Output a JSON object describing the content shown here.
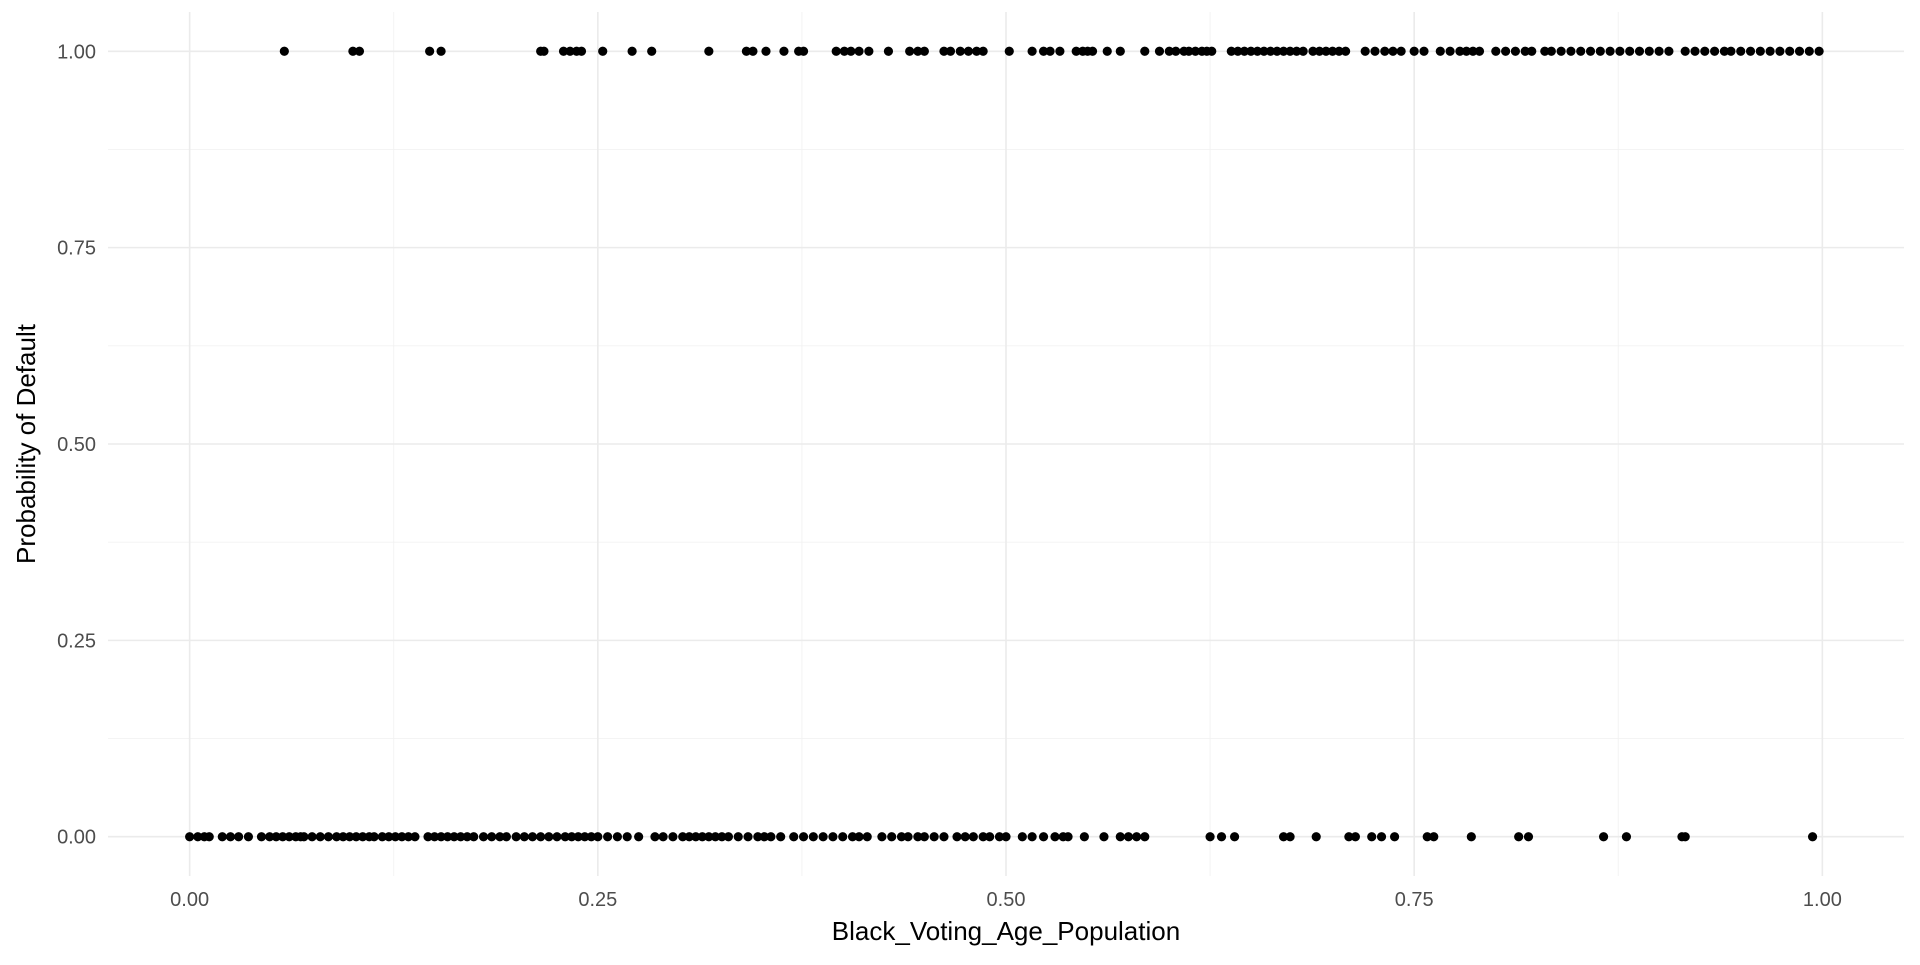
{
  "chart_data": {
    "type": "scatter",
    "title": "",
    "xlabel": "Black_Voting_Age_Population",
    "ylabel": "Probability of Default",
    "xlim": [
      -0.05,
      1.05
    ],
    "ylim": [
      -0.05,
      1.05
    ],
    "x_ticks": [
      0,
      0.25,
      0.5,
      0.75,
      1
    ],
    "x_tick_labels": [
      "0.00",
      "0.25",
      "0.50",
      "0.75",
      "1.00"
    ],
    "y_ticks": [
      0,
      0.25,
      0.5,
      0.75,
      1
    ],
    "y_tick_labels": [
      "0.00",
      "0.25",
      "0.50",
      "0.75",
      "1.00"
    ],
    "grid": true,
    "legend": "none",
    "point_color": "#000000",
    "series": [
      {
        "y": 1,
        "x": [
          0.058,
          0.1,
          0.104,
          0.147,
          0.154,
          0.215,
          0.217,
          0.229,
          0.233,
          0.237,
          0.24,
          0.253,
          0.271,
          0.283,
          0.318,
          0.341,
          0.345,
          0.353,
          0.364,
          0.373,
          0.376,
          0.396,
          0.401,
          0.405,
          0.41,
          0.416,
          0.428,
          0.441,
          0.446,
          0.45,
          0.462,
          0.466,
          0.472,
          0.477,
          0.482,
          0.486,
          0.502,
          0.516,
          0.523,
          0.527,
          0.533,
          0.543,
          0.547,
          0.55,
          0.553,
          0.562,
          0.57,
          0.585,
          0.594,
          0.6,
          0.604,
          0.609,
          0.612,
          0.616,
          0.62,
          0.623,
          0.626,
          0.638,
          0.642,
          0.646,
          0.65,
          0.654,
          0.658,
          0.662,
          0.666,
          0.67,
          0.674,
          0.678,
          0.682,
          0.688,
          0.692,
          0.696,
          0.7,
          0.704,
          0.708,
          0.72,
          0.726,
          0.732,
          0.737,
          0.742,
          0.75,
          0.756,
          0.766,
          0.772,
          0.778,
          0.782,
          0.786,
          0.79,
          0.8,
          0.806,
          0.812,
          0.818,
          0.822,
          0.83,
          0.834,
          0.84,
          0.846,
          0.852,
          0.858,
          0.864,
          0.87,
          0.876,
          0.882,
          0.888,
          0.894,
          0.9,
          0.906,
          0.916,
          0.922,
          0.928,
          0.934,
          0.94,
          0.944,
          0.95,
          0.956,
          0.962,
          0.968,
          0.974,
          0.98,
          0.986,
          0.992,
          0.998
        ]
      },
      {
        "y": 0,
        "x": [
          0.0,
          0.005,
          0.009,
          0.012,
          0.02,
          0.025,
          0.03,
          0.036,
          0.044,
          0.049,
          0.053,
          0.057,
          0.061,
          0.065,
          0.068,
          0.07,
          0.075,
          0.08,
          0.085,
          0.09,
          0.094,
          0.098,
          0.102,
          0.106,
          0.11,
          0.113,
          0.118,
          0.122,
          0.126,
          0.13,
          0.134,
          0.138,
          0.146,
          0.15,
          0.154,
          0.158,
          0.162,
          0.166,
          0.17,
          0.174,
          0.18,
          0.185,
          0.19,
          0.194,
          0.2,
          0.205,
          0.21,
          0.215,
          0.22,
          0.225,
          0.23,
          0.234,
          0.238,
          0.242,
          0.246,
          0.25,
          0.256,
          0.262,
          0.268,
          0.275,
          0.285,
          0.29,
          0.296,
          0.302,
          0.306,
          0.31,
          0.314,
          0.318,
          0.322,
          0.326,
          0.33,
          0.336,
          0.342,
          0.348,
          0.352,
          0.356,
          0.362,
          0.37,
          0.376,
          0.382,
          0.388,
          0.394,
          0.4,
          0.406,
          0.41,
          0.415,
          0.424,
          0.43,
          0.436,
          0.44,
          0.446,
          0.45,
          0.456,
          0.462,
          0.47,
          0.475,
          0.48,
          0.486,
          0.49,
          0.496,
          0.5,
          0.51,
          0.516,
          0.523,
          0.53,
          0.535,
          0.538,
          0.548,
          0.56,
          0.57,
          0.575,
          0.58,
          0.585,
          0.625,
          0.632,
          0.64,
          0.67,
          0.674,
          0.69,
          0.71,
          0.714,
          0.724,
          0.73,
          0.738,
          0.758,
          0.762,
          0.785,
          0.814,
          0.82,
          0.866,
          0.88,
          0.914,
          0.916,
          0.994
        ]
      }
    ]
  }
}
